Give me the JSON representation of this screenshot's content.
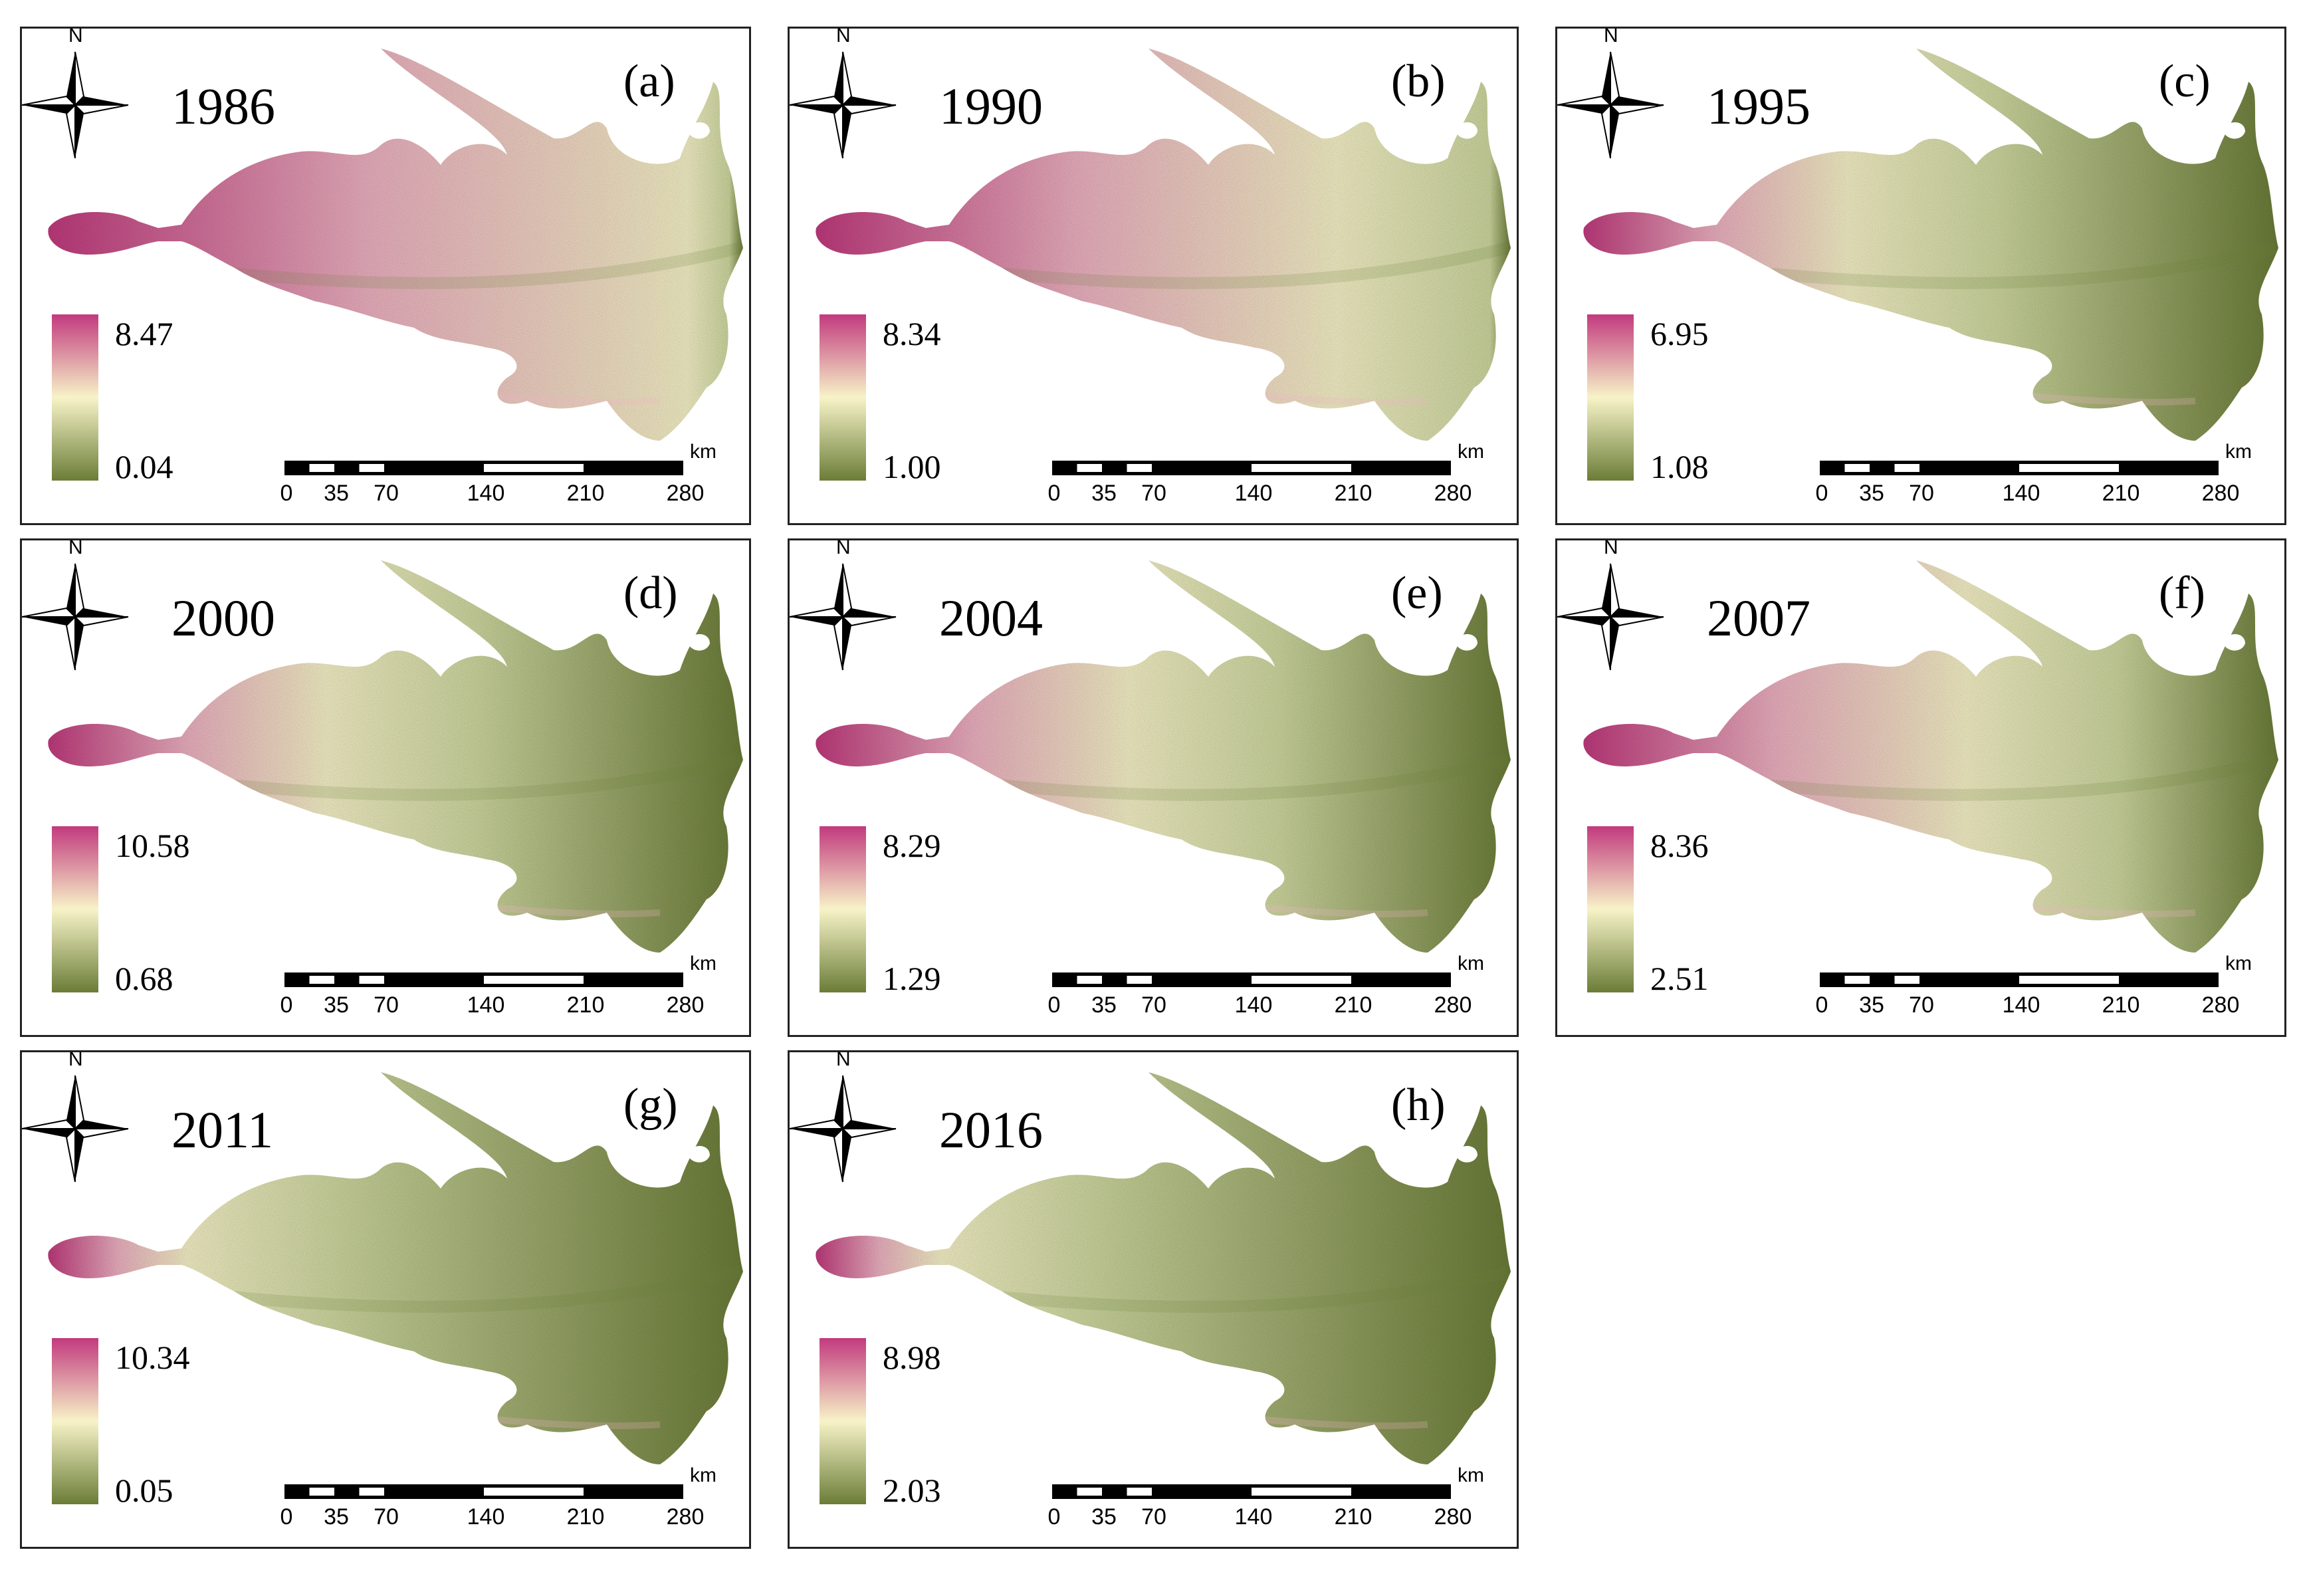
{
  "colors": {
    "high": "#c23a7e",
    "mid_high": "#eeb2c2",
    "mid": "#f7f3c8",
    "mid_low": "#cfd9a0",
    "low": "#6b7d37"
  },
  "compass_label": "N",
  "scale_bar": {
    "ticks": [
      "0",
      "35",
      "70",
      "140",
      "210",
      "280"
    ],
    "unit": "km"
  },
  "panels": [
    {
      "letter": "(a)",
      "year": "1986",
      "legend_max": "8.47",
      "legend_min": "0.04",
      "pink_extent": 0.92
    },
    {
      "letter": "(b)",
      "year": "1990",
      "legend_max": "8.34",
      "legend_min": "1.00",
      "pink_extent": 0.75
    },
    {
      "letter": "(c)",
      "year": "1995",
      "legend_max": "6.95",
      "legend_min": "1.08",
      "pink_extent": 0.38
    },
    {
      "letter": "(d)",
      "year": "2000",
      "legend_max": "10.58",
      "legend_min": "0.68",
      "pink_extent": 0.4
    },
    {
      "letter": "(e)",
      "year": "2004",
      "legend_max": "8.29",
      "legend_min": "1.29",
      "pink_extent": 0.45
    },
    {
      "letter": "(f)",
      "year": "2007",
      "legend_max": "8.36",
      "legend_min": "2.51",
      "pink_extent": 0.55
    },
    {
      "letter": "(g)",
      "year": "2011",
      "legend_max": "10.34",
      "legend_min": "0.05",
      "pink_extent": 0.2
    },
    {
      "letter": "(h)",
      "year": "2016",
      "legend_max": "8.98",
      "legend_min": "2.03",
      "pink_extent": 0.18
    }
  ]
}
